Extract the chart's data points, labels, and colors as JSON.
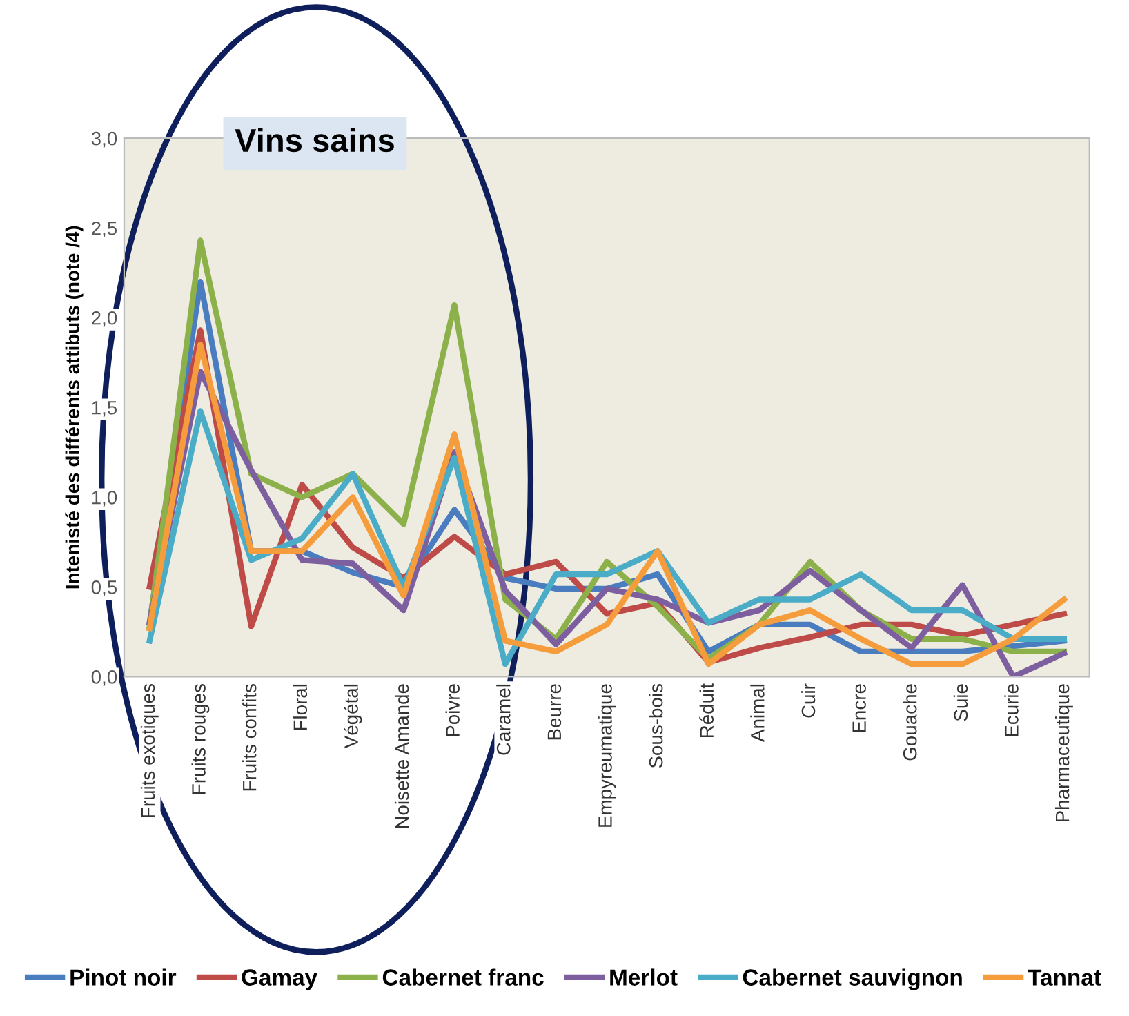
{
  "chart_data": {
    "type": "line",
    "ylabel": "Intenisté des différents attibuts (note /4)",
    "categories": [
      "Fruits exotiques",
      "Fruits rouges",
      "Fruits confits",
      "Floral",
      "Végétal",
      "Noisette Amande",
      "Poivre",
      "Caramel",
      "Beurre",
      "Empyreumatique",
      "Sous-bois",
      "Réduit",
      "Animal",
      "Cuir",
      "Encre",
      "Gouache",
      "Suie",
      "Ecurie",
      "Pharmaceutique"
    ],
    "series": [
      {
        "name": "Pinot noir",
        "color": "#4a7cc0",
        "values": [
          0.3,
          2.2,
          0.7,
          0.7,
          0.58,
          0.5,
          0.93,
          0.55,
          0.49,
          0.49,
          0.57,
          0.14,
          0.29,
          0.29,
          0.14,
          0.14,
          0.14,
          0.17,
          0.2
        ]
      },
      {
        "name": "Gamay",
        "color": "#be4b48",
        "values": [
          0.5,
          1.93,
          0.28,
          1.07,
          0.72,
          0.55,
          0.78,
          0.57,
          0.64,
          0.35,
          0.41,
          0.08,
          0.16,
          0.22,
          0.29,
          0.29,
          0.23,
          0.29,
          0.35
        ]
      },
      {
        "name": "Cabernet franc",
        "color": "#8cb14a",
        "values": [
          0.28,
          2.43,
          1.13,
          1.0,
          1.13,
          0.85,
          2.07,
          0.43,
          0.21,
          0.64,
          0.39,
          0.1,
          0.29,
          0.64,
          0.37,
          0.21,
          0.21,
          0.14,
          0.14
        ]
      },
      {
        "name": "Merlot",
        "color": "#7d5fa0",
        "values": [
          0.3,
          1.7,
          1.15,
          0.65,
          0.63,
          0.37,
          1.25,
          0.48,
          0.18,
          0.49,
          0.43,
          0.3,
          0.37,
          0.59,
          0.37,
          0.16,
          0.51,
          0.0,
          0.13
        ]
      },
      {
        "name": "Cabernet sauvignon",
        "color": "#4aacc6",
        "values": [
          0.2,
          1.48,
          0.65,
          0.77,
          1.13,
          0.5,
          1.22,
          0.07,
          0.57,
          0.57,
          0.7,
          0.3,
          0.43,
          0.43,
          0.57,
          0.37,
          0.37,
          0.21,
          0.21
        ]
      },
      {
        "name": "Tannat",
        "color": "#f59d3d",
        "values": [
          0.27,
          1.85,
          0.7,
          0.7,
          1.0,
          0.45,
          1.35,
          0.2,
          0.14,
          0.29,
          0.7,
          0.07,
          0.29,
          0.37,
          0.21,
          0.07,
          0.07,
          0.21,
          0.43
        ]
      }
    ],
    "ylim": [
      0,
      3
    ],
    "yticks": [
      {
        "value": 0,
        "label": "0,0"
      },
      {
        "value": 0.5,
        "label": "0,5"
      },
      {
        "value": 1,
        "label": "1,0"
      },
      {
        "value": 1.5,
        "label": "1,5"
      },
      {
        "value": 2,
        "label": "2,0"
      },
      {
        "value": 2.5,
        "label": "2,5"
      },
      {
        "value": 3,
        "label": "3,0"
      }
    ],
    "annotations": [
      "Vins sains"
    ],
    "grid": false,
    "legend": "bottom",
    "marker": "none",
    "line_style": "solid"
  }
}
